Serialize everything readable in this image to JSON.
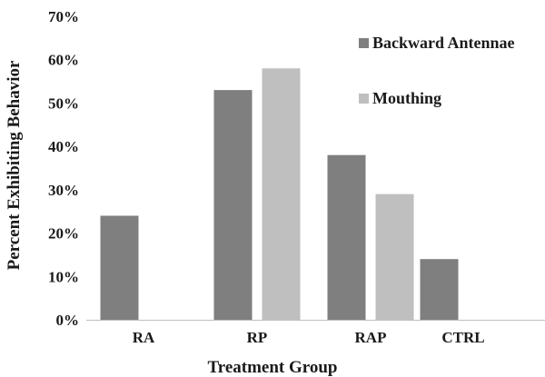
{
  "chart_data": {
    "type": "bar",
    "categories": [
      "RA",
      "RP",
      "RAP",
      "CTRL"
    ],
    "series": [
      {
        "name": "Backward Antennae",
        "values": [
          24,
          53,
          38,
          14
        ],
        "color": "#7f7f7f"
      },
      {
        "name": "Mouthing",
        "values": [
          0,
          58,
          29,
          0
        ],
        "color": "#bfbfbf"
      }
    ],
    "xlabel": "Treatment Group",
    "ylabel": "Percent Exhibiting Behavior",
    "ylim": [
      0,
      70
    ],
    "yticks": [
      "0%",
      "10%",
      "20%",
      "30%",
      "40%",
      "50%",
      "60%",
      "70%"
    ],
    "grid": false,
    "legend": "top-right"
  }
}
